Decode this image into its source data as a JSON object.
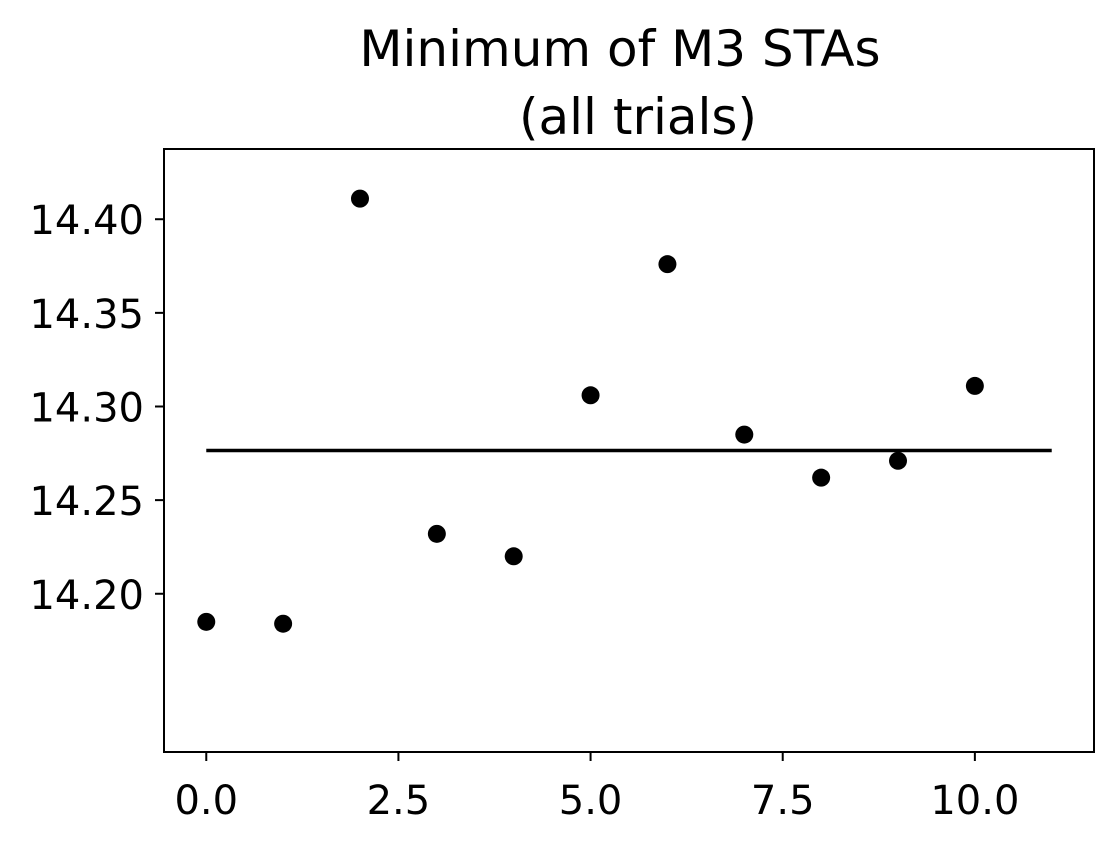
{
  "chart_data": {
    "type": "scatter",
    "title": [
      "Minimum of M3 STAs",
      "(all trials)"
    ],
    "xlabel": "",
    "ylabel": "",
    "xlim": [
      -0.55,
      11.55
    ],
    "ylim": [
      14.1155,
      14.4375
    ],
    "x_ticks": [
      0.0,
      2.5,
      5.0,
      7.5,
      10.0
    ],
    "x_tick_labels": [
      "0.0",
      "2.5",
      "5.0",
      "7.5",
      "10.0"
    ],
    "y_ticks": [
      14.2,
      14.25,
      14.3,
      14.35,
      14.4
    ],
    "y_tick_labels": [
      "14.20",
      "14.25",
      "14.30",
      "14.35",
      "14.40"
    ],
    "series": [
      {
        "x": [
          0,
          1,
          2,
          3,
          4,
          5,
          6,
          7,
          8,
          9,
          10
        ],
        "y": [
          14.185,
          14.184,
          14.411,
          14.232,
          14.22,
          14.306,
          14.376,
          14.285,
          14.262,
          14.271,
          14.311
        ],
        "color": "#000000",
        "marker": "circle"
      }
    ],
    "mean_line": {
      "x": [
        0,
        11
      ],
      "y": 14.2765,
      "color": "#000000"
    },
    "grid": false,
    "legend": "none"
  }
}
